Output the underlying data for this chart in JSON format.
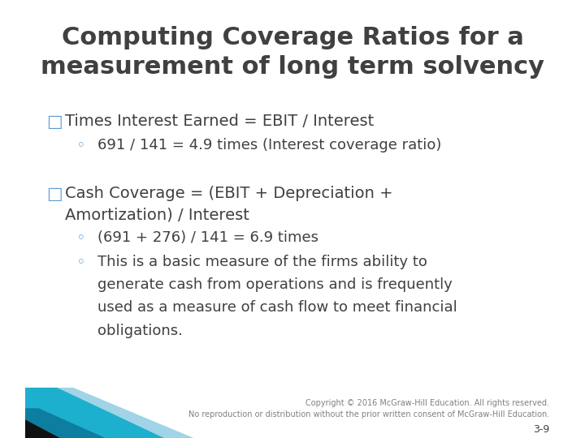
{
  "title_line1": "Computing Coverage Ratios for a",
  "title_line2": "measurement of long term solvency",
  "title_color": "#404040",
  "title_fontsize": 22,
  "bg_color": "#ffffff",
  "bullet_marker": "□",
  "bullet_marker_color": "#5b9bd5",
  "bullet1_text": "Times Interest Earned = EBIT / Interest",
  "sub1_text": "691 / 141 = 4.9 times (Interest coverage ratio)",
  "bullet2_text_line1": "Cash Coverage = (EBIT + Depreciation +",
  "bullet2_text_line2": "Amortization) / Interest",
  "sub2a_text": "(691 + 276) / 141 = 6.9 times",
  "sub2b_lines": [
    "This is a basic measure of the firms ability to",
    "generate cash from operations and is frequently",
    "used as a measure of cash flow to meet financial",
    "obligations."
  ],
  "sub_bullet_marker": "◦",
  "sub_bullet_color": "#5b9bd5",
  "body_fontsize": 14,
  "body_color": "#404040",
  "copyright_text": "Copyright © 2016 McGraw-Hill Education. All rights reserved.\nNo reproduction or distribution without the prior written consent of McGraw-Hill Education.",
  "page_num": "3-9",
  "footer_color": "#808080",
  "footer_fontsize": 7
}
